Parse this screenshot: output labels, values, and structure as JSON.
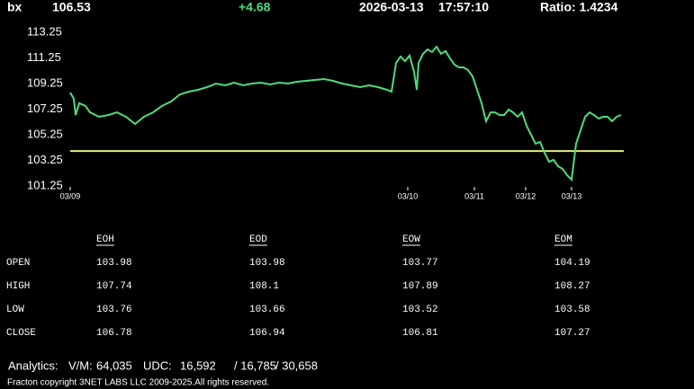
{
  "header": {
    "symbol": "bx",
    "price": "106.53",
    "change": "+4.68",
    "date": "2026-03-13",
    "time": "17:57:10",
    "ratio": "Ratio: 1.4234"
  },
  "chart_data": {
    "type": "line",
    "x": [
      0,
      4,
      6,
      10,
      17,
      22,
      32,
      42,
      52,
      62,
      72,
      82,
      92,
      102,
      112,
      122,
      132,
      142,
      152,
      162,
      172,
      182,
      192,
      202,
      212,
      222,
      232,
      242,
      252,
      262,
      272,
      282,
      292,
      302,
      312,
      322,
      332,
      342,
      352,
      357,
      362,
      367,
      372,
      377,
      382,
      385,
      387,
      392,
      397,
      402,
      407,
      412,
      417,
      422,
      427,
      432,
      437,
      442,
      447,
      452,
      457,
      462,
      467,
      472,
      477,
      482,
      487,
      492,
      497,
      502,
      507,
      512,
      517,
      522,
      527,
      532,
      537,
      542,
      547,
      552,
      557,
      562,
      567,
      572,
      577,
      582,
      587,
      592,
      597,
      602,
      607,
      612
    ],
    "series": [
      {
        "color": "#4fdb7e",
        "values": [
          108.55,
          108.06,
          106.79,
          107.71,
          107.5,
          107.0,
          106.65,
          106.79,
          107.0,
          106.65,
          106.09,
          106.65,
          107.0,
          107.5,
          107.85,
          108.41,
          108.62,
          108.76,
          108.97,
          109.25,
          109.11,
          109.32,
          109.11,
          109.25,
          109.32,
          109.18,
          109.32,
          109.25,
          109.39,
          109.46,
          109.53,
          109.6,
          109.46,
          109.25,
          109.11,
          108.97,
          109.11,
          108.97,
          108.76,
          108.62,
          110.86,
          111.36,
          111.0,
          111.43,
          110.16,
          108.76,
          110.86,
          111.57,
          111.92,
          111.71,
          112.13,
          111.57,
          111.78,
          111.21,
          110.72,
          110.51,
          110.51,
          110.3,
          109.81,
          108.76,
          107.71,
          106.3,
          107.0,
          107.0,
          106.79,
          106.79,
          107.21,
          107.0,
          106.65,
          107.0,
          105.95,
          105.25,
          104.55,
          104.69,
          103.85,
          103.14,
          103.29,
          102.79,
          102.58,
          102.09,
          101.74,
          104.55,
          105.6,
          106.65,
          107.0,
          106.79,
          106.51,
          106.65,
          106.65,
          106.3,
          106.65,
          106.79
        ]
      }
    ],
    "reference_line": {
      "value": 103.98,
      "color": "#e3ef7c"
    },
    "xlim": [
      0,
      615
    ],
    "xticks": [
      {
        "value": 0,
        "label": "03/09"
      },
      {
        "value": 375,
        "label": "03/10"
      },
      {
        "value": 449,
        "label": "03/11"
      },
      {
        "value": 506,
        "label": "03/12"
      },
      {
        "value": 557,
        "label": "03/13"
      }
    ],
    "ylim": [
      101.25,
      113.25
    ],
    "yticks": [
      101.25,
      103.25,
      105.25,
      107.25,
      109.25,
      111.25,
      113.25
    ],
    "grid": false
  },
  "table": {
    "columns": [
      "EOH",
      "EOD",
      "EOW",
      "EOM"
    ],
    "rows": [
      [
        "OPEN",
        "103.98",
        "103.98",
        "103.77",
        "104.19"
      ],
      [
        "HIGH",
        "107.74",
        "108.1",
        "107.89",
        "108.27"
      ],
      [
        "LOW",
        "103.76",
        "103.66",
        "103.52",
        "103.58"
      ],
      [
        "CLOSE",
        "106.78",
        "106.94",
        "106.81",
        "107.27"
      ]
    ]
  },
  "analytics": {
    "label": "Analytics:",
    "vm_label": "V/M:",
    "vm": "64,035",
    "udc_label": "UDC:",
    "udc": [
      "16,592",
      "/ 16,785",
      "/ 30,658"
    ]
  },
  "footer": "Fracton copyright 3NET LABS LLC 2009-2025.All rights reserved."
}
